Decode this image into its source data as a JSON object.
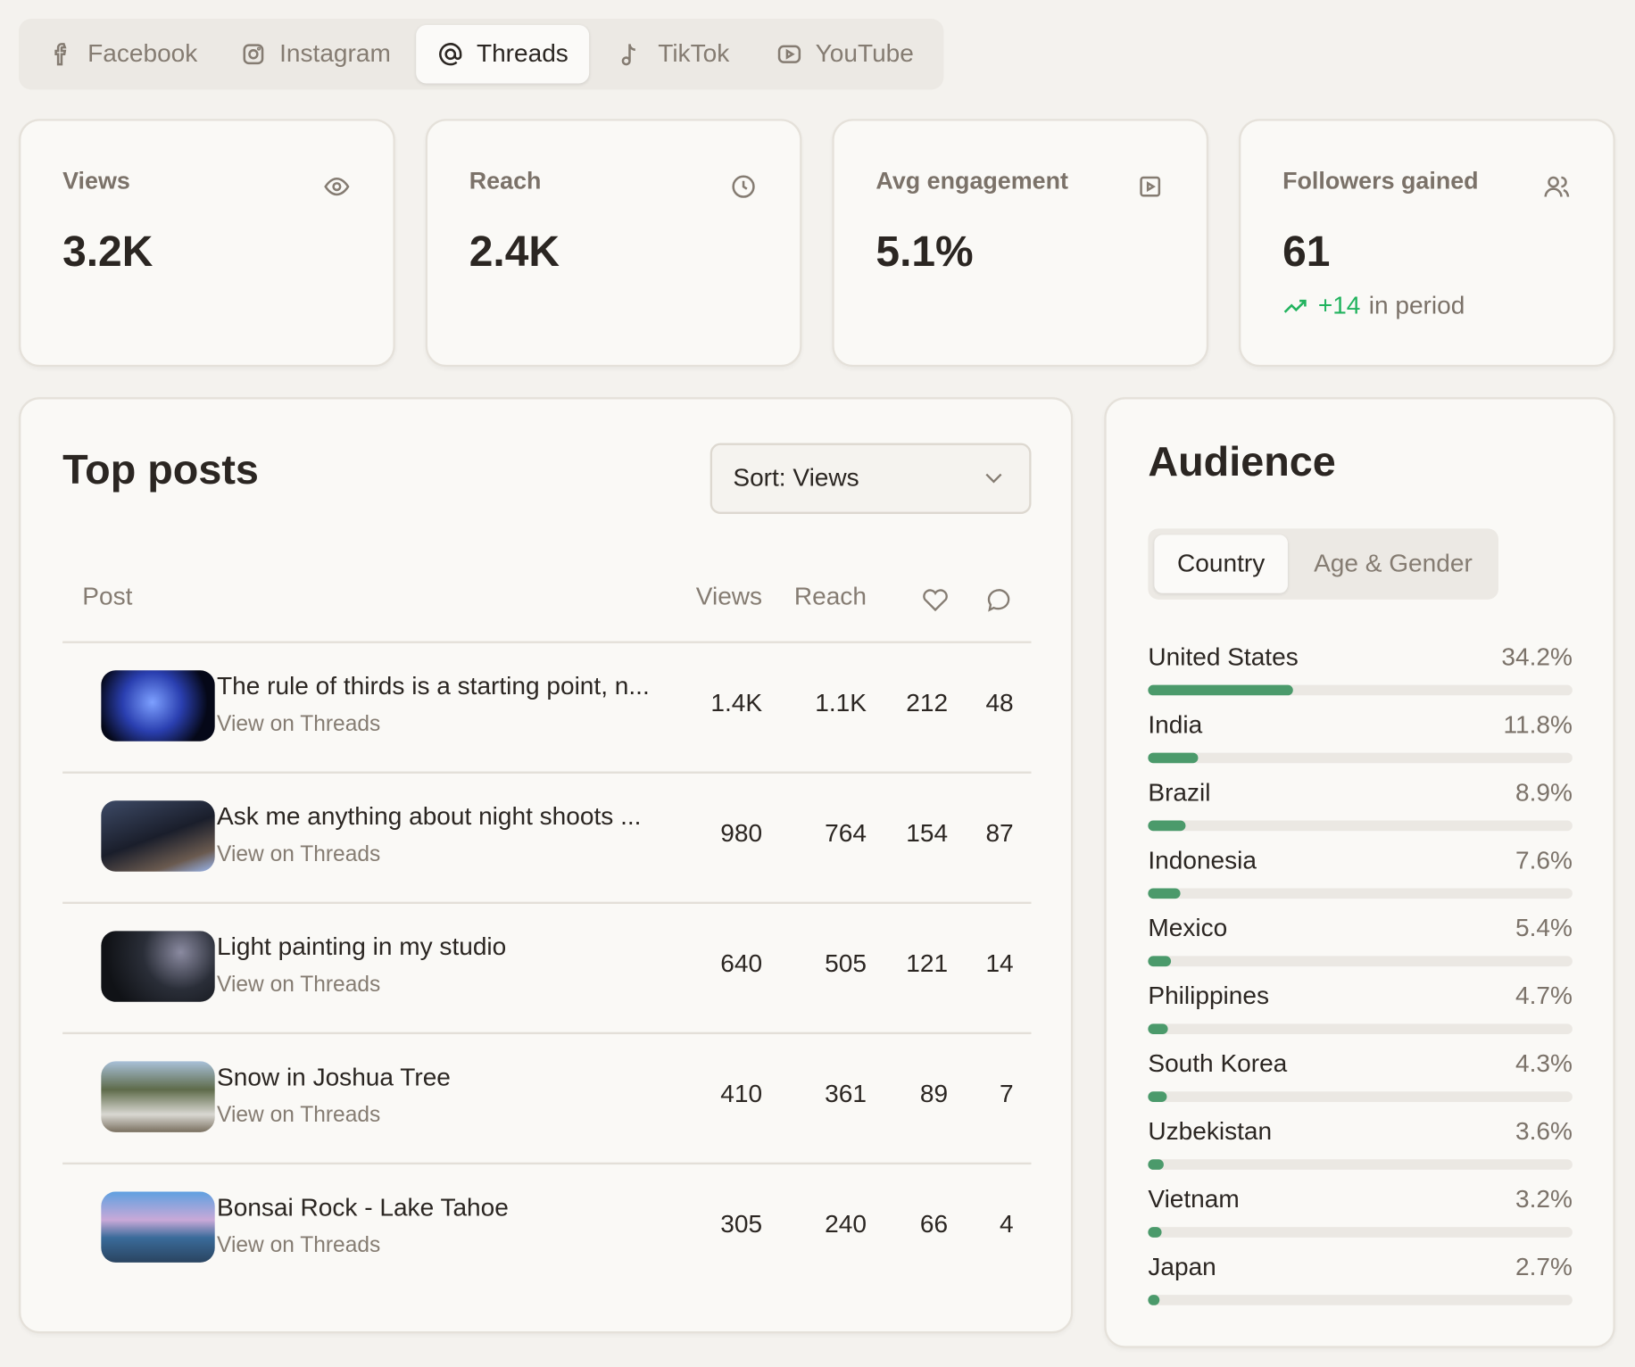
{
  "tabs": [
    "Facebook",
    "Instagram",
    "Threads",
    "TikTok",
    "YouTube"
  ],
  "active_tab": 2,
  "stats": [
    {
      "label": "Views",
      "value": "3.2K"
    },
    {
      "label": "Reach",
      "value": "2.4K"
    },
    {
      "label": "Avg engagement",
      "value": "5.1%"
    },
    {
      "label": "Followers gained",
      "value": "61",
      "delta": "+14",
      "delta_note": "in period"
    }
  ],
  "top_posts": {
    "title": "Top posts",
    "sort": "Sort: Views",
    "columns": [
      "Post",
      "Views",
      "Reach"
    ],
    "rows": [
      {
        "title": "The rule of thirds is a starting point, n...",
        "link": "View on Threads",
        "views": "1.4K",
        "reach": "1.1K",
        "likes": 212,
        "comments": 48
      },
      {
        "title": "Ask me anything about night shoots ...",
        "link": "View on Threads",
        "views": 980,
        "reach": 764,
        "likes": 154,
        "comments": 87
      },
      {
        "title": "Light painting in my studio",
        "link": "View on Threads",
        "views": 640,
        "reach": 505,
        "likes": 121,
        "comments": 14
      },
      {
        "title": "Snow in Joshua Tree",
        "link": "View on Threads",
        "views": 410,
        "reach": 361,
        "likes": 89,
        "comments": 7
      },
      {
        "title": "Bonsai Rock - Lake Tahoe",
        "link": "View on Threads",
        "views": 305,
        "reach": 240,
        "likes": 66,
        "comments": 4
      }
    ]
  },
  "audience": {
    "title": "Audience",
    "tabs": [
      "Country",
      "Age & Gender"
    ],
    "countries": {
      "names": [
        "United States",
        "India",
        "Brazil",
        "Indonesia",
        "Mexico",
        "Philippines",
        "South Korea",
        "Uzbekistan",
        "Vietnam",
        "Japan"
      ],
      "values": [
        34.2,
        11.8,
        8.9,
        7.6,
        5.4,
        4.7,
        4.3,
        3.6,
        3.2,
        2.7
      ],
      "value_labels": [
        "34.2%",
        "11.8%",
        "8.9%",
        "7.6%",
        "5.4%",
        "4.7%",
        "4.3%",
        "3.6%",
        "3.2%",
        "2.7%"
      ],
      "xlim": [
        0,
        100
      ]
    }
  }
}
